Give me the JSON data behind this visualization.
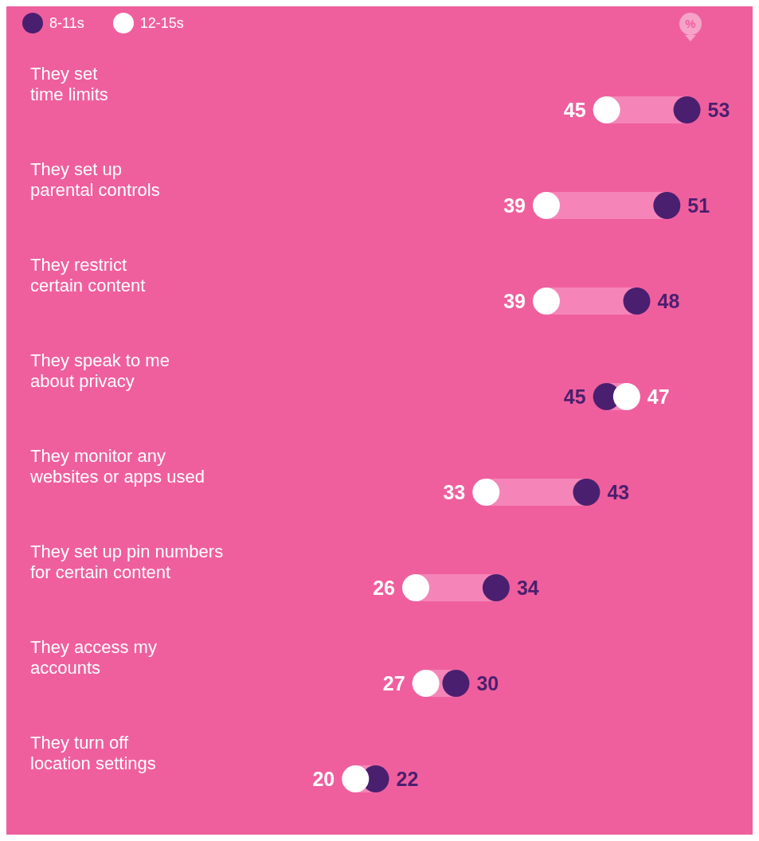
{
  "chart_data": {
    "type": "scatter",
    "orientation": "horizontal",
    "categories": [
      "They set\ntime limits",
      "They set up\nparental controls",
      "They restrict\ncertain content",
      "They speak to me\nabout privacy",
      "They monitor any\nwebsites or apps used",
      "They set up pin numbers\nfor certain content",
      "They access my\naccounts",
      "They turn off\nlocation settings"
    ],
    "series": [
      {
        "name": "8-11s",
        "color": "#4b1f6f",
        "values": [
          53,
          51,
          48,
          45,
          43,
          34,
          30,
          22
        ]
      },
      {
        "name": "12-15s",
        "color": "#ffffff",
        "values": [
          45,
          39,
          39,
          47,
          33,
          26,
          27,
          20
        ]
      }
    ],
    "tick_labels": "y",
    "data_labels": true,
    "legend": "top left",
    "marker": "circle",
    "annotations": [
      "%"
    ]
  }
}
